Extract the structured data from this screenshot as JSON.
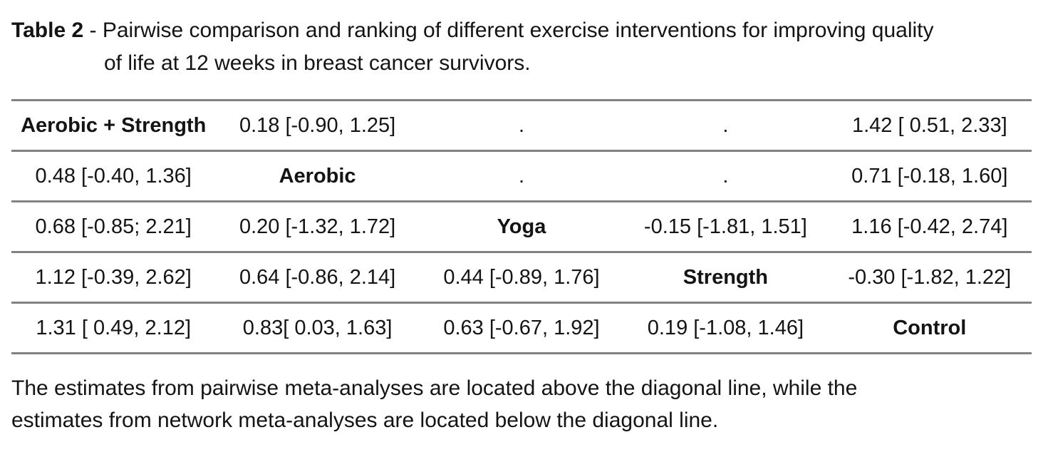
{
  "title": {
    "label": "Table 2",
    "line1_rest": " - Pairwise comparison and ranking of different exercise interventions for improving quality",
    "line2": "of life at 12 weeks in breast cancer survivors."
  },
  "table": {
    "treatments": [
      "Aerobic + Strength",
      "Aerobic",
      "Yoga",
      "Strength",
      "Control"
    ],
    "rows": [
      [
        "Aerobic + Strength",
        "0.18 [-0.90, 1.25]",
        ".",
        ".",
        "1.42 [ 0.51, 2.33]"
      ],
      [
        "0.48 [-0.40, 1.36]",
        "Aerobic",
        ".",
        ".",
        "0.71 [-0.18, 1.60]"
      ],
      [
        "0.68 [-0.85; 2.21]",
        "0.20 [-1.32, 1.72]",
        "Yoga",
        "-0.15 [-1.81, 1.51]",
        "1.16 [-0.42, 2.74]"
      ],
      [
        "1.12 [-0.39, 2.62]",
        "0.64 [-0.86, 2.14]",
        "0.44 [-0.89, 1.76]",
        "Strength",
        "-0.30 [-1.82, 1.22]"
      ],
      [
        "1.31 [ 0.49, 2.12]",
        "0.83[ 0.03, 1.63]",
        "0.63 [-0.67, 1.92]",
        "0.19 [-1.08, 1.46]",
        "Control"
      ]
    ]
  },
  "chart_data": {
    "type": "table",
    "title": "Table 2 - Pairwise comparison and ranking of different exercise interventions for improving quality of life at 12 weeks in breast cancer survivors.",
    "diagonal": [
      "Aerobic + Strength",
      "Aerobic",
      "Yoga",
      "Strength",
      "Control"
    ],
    "rows": [
      [
        "Aerobic + Strength",
        "0.18 [-0.90, 1.25]",
        ".",
        ".",
        "1.42 [ 0.51, 2.33]"
      ],
      [
        "0.48 [-0.40, 1.36]",
        "Aerobic",
        ".",
        ".",
        "0.71 [-0.18, 1.60]"
      ],
      [
        "0.68 [-0.85; 2.21]",
        "0.20 [-1.32, 1.72]",
        "Yoga",
        "-0.15 [-1.81, 1.51]",
        "1.16 [-0.42, 2.74]"
      ],
      [
        "1.12 [-0.39, 2.62]",
        "0.64 [-0.86, 2.14]",
        "0.44 [-0.89, 1.76]",
        "Strength",
        "-0.30 [-1.82, 1.22]"
      ],
      [
        "1.31 [ 0.49, 2.12]",
        "0.83[ 0.03, 1.63]",
        "0.63 [-0.67, 1.92]",
        "0.19 [-1.08, 1.46]",
        "Control"
      ]
    ],
    "note": "Estimates above the diagonal are from pairwise meta-analyses; estimates below the diagonal are from network meta-analyses."
  },
  "footnote": {
    "line1": "The estimates from pairwise meta-analyses are located above the diagonal line, while the",
    "line2": "estimates from network meta-analyses are located below the diagonal line."
  },
  "colors": {
    "rule": "#828282",
    "text": "#141414"
  }
}
